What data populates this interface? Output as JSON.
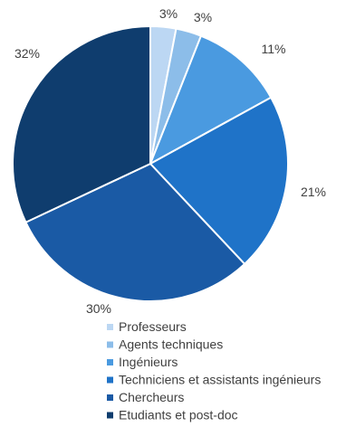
{
  "chart_data": {
    "type": "pie",
    "title": "",
    "categories": [
      "Professeurs",
      "Agents techniques",
      "Ingénieurs",
      "Techniciens et assistants ingénieurs",
      "Chercheurs",
      "Etudiants et post-doc"
    ],
    "values": [
      3,
      3,
      11,
      21,
      30,
      32
    ],
    "data_labels": [
      "3%",
      "3%",
      "11%",
      "21%",
      "30%",
      "32%"
    ],
    "colors": [
      "#bcd7f3",
      "#8cbde9",
      "#4a9ae0",
      "#1f73c8",
      "#1a5aa5",
      "#0f3d6e"
    ],
    "legend_position": "bottom",
    "start_angle_deg": 0,
    "direction": "clockwise"
  }
}
